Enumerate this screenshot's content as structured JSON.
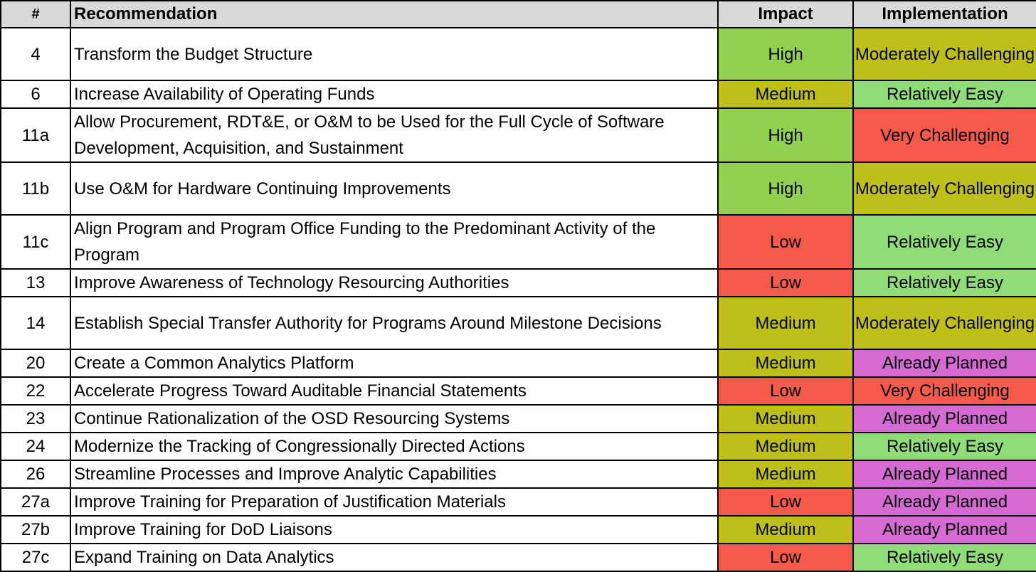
{
  "headers": {
    "num": "#",
    "recommendation": "Recommendation",
    "impact": "Impact",
    "implementation": "Implementation"
  },
  "colors": {
    "High": "#92d050",
    "Medium": "#bfbf1a",
    "Low": "#f4594a",
    "Moderately Challenging": "#bfbf1a",
    "Relatively Easy": "#8fdc78",
    "Very Challenging": "#f4594a",
    "Already Planned": "#d56ad3"
  },
  "rows": [
    {
      "num": "4",
      "recommendation": "Transform the Budget Structure",
      "impact": "High",
      "implementation": "Moderately Challenging",
      "lines": 2
    },
    {
      "num": "6",
      "recommendation": "Increase Availability of Operating Funds",
      "impact": "Medium",
      "implementation": "Relatively Easy",
      "lines": 1
    },
    {
      "num": "11a",
      "recommendation": "Allow Procurement, RDT&E, or O&M to be Used for the Full Cycle of Software Development, Acquisition, and Sustainment",
      "impact": "High",
      "implementation": "Very Challenging",
      "lines": 2
    },
    {
      "num": "11b",
      "recommendation": "Use O&M for Hardware Continuing Improvements",
      "impact": "High",
      "implementation": "Moderately Challenging",
      "lines": 2
    },
    {
      "num": "11c",
      "recommendation": "Align Program and Program Office Funding to the Predominant Activity of the Program",
      "impact": "Low",
      "implementation": "Relatively Easy",
      "lines": 2
    },
    {
      "num": "13",
      "recommendation": "Improve Awareness of Technology Resourcing Authorities",
      "impact": "Low",
      "implementation": "Relatively Easy",
      "lines": 1
    },
    {
      "num": "14",
      "recommendation": "Establish Special Transfer Authority for Programs Around Milestone Decisions",
      "impact": "Medium",
      "implementation": "Moderately Challenging",
      "lines": 2
    },
    {
      "num": "20",
      "recommendation": "Create a Common Analytics Platform",
      "impact": "Medium",
      "implementation": "Already Planned",
      "lines": 1
    },
    {
      "num": "22",
      "recommendation": "Accelerate Progress Toward Auditable Financial Statements",
      "impact": "Low",
      "implementation": "Very Challenging",
      "lines": 1
    },
    {
      "num": "23",
      "recommendation": "Continue Rationalization of the OSD Resourcing Systems",
      "impact": "Medium",
      "implementation": "Already Planned",
      "lines": 1
    },
    {
      "num": "24",
      "recommendation": "Modernize the Tracking of Congressionally Directed Actions",
      "impact": "Medium",
      "implementation": "Relatively Easy",
      "lines": 1
    },
    {
      "num": "26",
      "recommendation": "Streamline Processes and Improve Analytic Capabilities",
      "impact": "Medium",
      "implementation": "Already Planned",
      "lines": 1
    },
    {
      "num": "27a",
      "recommendation": "Improve Training for Preparation of Justification Materials",
      "impact": "Low",
      "implementation": "Already Planned",
      "lines": 1
    },
    {
      "num": "27b",
      "recommendation": "Improve Training for DoD Liaisons",
      "impact": "Medium",
      "implementation": "Already Planned",
      "lines": 1
    },
    {
      "num": "27c",
      "recommendation": "Expand Training on Data Analytics",
      "impact": "Low",
      "implementation": "Relatively Easy",
      "lines": 1
    }
  ]
}
